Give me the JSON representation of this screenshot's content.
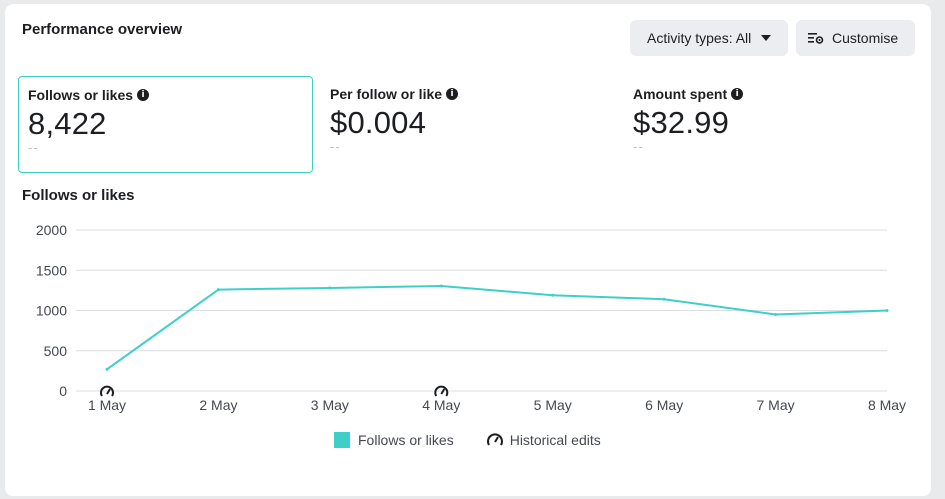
{
  "header": {
    "title": "Performance overview",
    "activity_button_label": "Activity types: All",
    "customise_button_label": "Customise"
  },
  "metrics": [
    {
      "label": "Follows or likes",
      "value": "8,422",
      "change": "--",
      "selected": true
    },
    {
      "label": "Per follow or like",
      "value": "$0.004",
      "change": "--",
      "selected": false
    },
    {
      "label": "Amount spent",
      "value": "$32.99",
      "change": "--",
      "selected": false
    }
  ],
  "chart_title": "Follows or likes",
  "colors": {
    "accent": "#3ecfc9",
    "grid": "#dadde1",
    "text": "#444950"
  },
  "chart_data": {
    "type": "line",
    "categories": [
      "1 May",
      "2 May",
      "3 May",
      "4 May",
      "5 May",
      "6 May",
      "7 May",
      "8 May"
    ],
    "series": [
      {
        "name": "Follows or likes",
        "values": [
          270,
          1260,
          1280,
          1305,
          1190,
          1140,
          950,
          1000
        ]
      }
    ],
    "yticks": [
      0,
      500,
      1000,
      1500,
      2000
    ],
    "ylim": [
      0,
      2000
    ],
    "grid": true,
    "legend_position": "bottom",
    "historical_edit_markers": [
      "1 May",
      "4 May"
    ]
  },
  "legend": {
    "series_label": "Follows or likes",
    "edits_label": "Historical edits",
    "edits_icon": "gauge-icon"
  }
}
